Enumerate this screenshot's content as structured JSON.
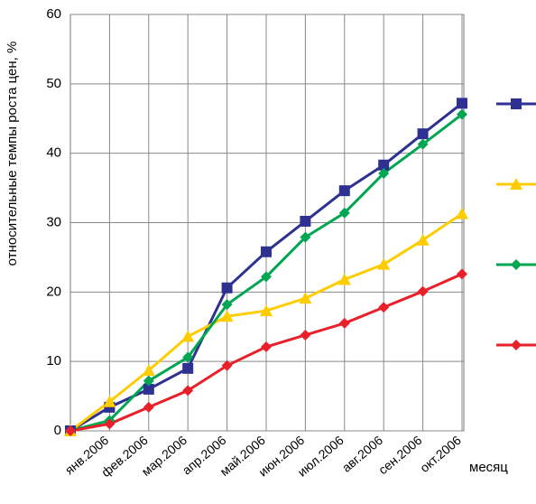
{
  "chart_data": {
    "type": "line",
    "ylabel": "относительные темпы роста цен, %",
    "xlabel": "месяц",
    "categories": [
      null,
      "янв.2006",
      "фев.2006",
      "мар.2006",
      "апр.2006",
      "май.2006",
      "июн.2006",
      "июл.2006",
      "авг.2006",
      "сен.2006",
      "окт.2006"
    ],
    "series": [
      {
        "color": "#2e3192",
        "marker": "square",
        "values": [
          0,
          3.4,
          6,
          9,
          20.6,
          25.8,
          30.2,
          34.6,
          38.3,
          42.8,
          47.2
        ]
      },
      {
        "color": "#ffcc00",
        "marker": "triangle",
        "values": [
          0,
          4.2,
          8.7,
          13.6,
          16.5,
          17.3,
          19.1,
          21.8,
          24,
          27.5,
          31.3
        ]
      },
      {
        "color": "#00a651",
        "marker": "diamond",
        "values": [
          0,
          1.5,
          7.2,
          10.6,
          18.2,
          22.2,
          27.9,
          31.4,
          37.1,
          41.3,
          45.6
        ]
      },
      {
        "color": "#e8202a",
        "marker": "diamond",
        "values": [
          0,
          1,
          3.4,
          5.8,
          9.4,
          12.1,
          13.8,
          15.5,
          17.8,
          20.1,
          22.6
        ]
      }
    ],
    "ylim": [
      0,
      60
    ],
    "yticks": [
      0,
      10,
      20,
      30,
      40,
      50,
      60
    ],
    "grid": true
  }
}
